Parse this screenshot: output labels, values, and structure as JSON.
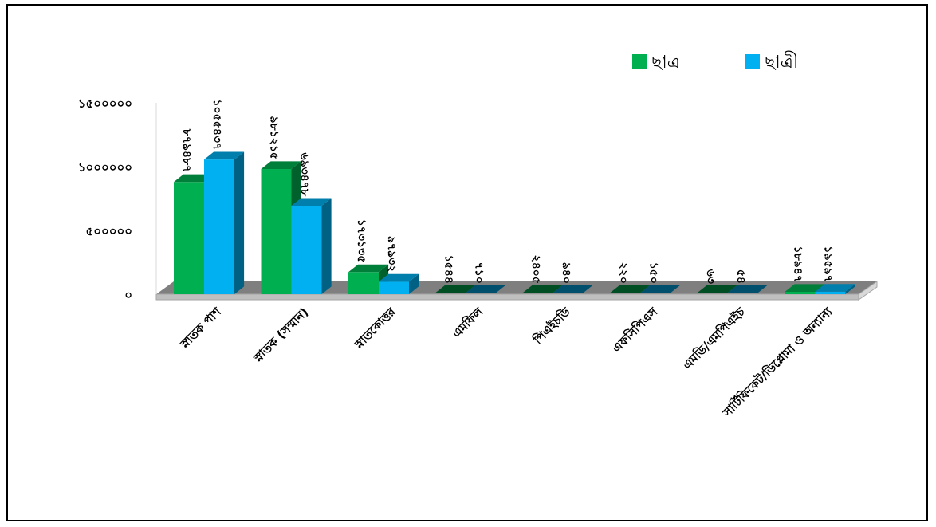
{
  "chart_data": {
    "type": "bar",
    "categories": [
      "স্নাতক পাশ",
      "স্নাতক (সম্মান)",
      "স্নাতকোত্তর",
      "এমফিল",
      "পিএইচডি",
      "এফসিপিএস",
      "এমডি/এমপিএইচ",
      "সার্টিফিকেট/ডিপ্লোমা ও অন্যান্য"
    ],
    "series": [
      {
        "name": "ছাত্র",
        "color": "#00b050",
        "values": [
          879487,
          981215,
          173135,
          1544,
          2405,
          220,
          63,
          18947
        ],
        "labels": [
          "৮৭৯৪৮৭",
          "৯৮১২১৫",
          "১৭৩১৩৫",
          "১৫৪৪",
          "২৪০৫",
          "২২০",
          "৬৩",
          "১৮৯৪৭"
        ]
      },
      {
        "name": "ছাত্রী",
        "color": "#00b0f0",
        "values": [
          1055437,
          693478,
          97932,
          710,
          940,
          150,
          54,
          19597
        ],
        "labels": [
          "১০৫৫৪৩৭",
          "৬৯৩৪৭৮",
          "৯৭৯৩২",
          "৭১০",
          "৯৪০",
          "১৫০",
          "৫৪",
          "১৯৫৯৭"
        ]
      }
    ],
    "ylim": [
      0,
      1500000
    ],
    "yticks": [
      0,
      500000,
      1000000,
      1500000
    ],
    "ytick_labels": [
      "০",
      "৫০০০০০",
      "১০০০০০০",
      "১৫০০০০০"
    ],
    "legend_position": "top-right",
    "grid": false
  }
}
